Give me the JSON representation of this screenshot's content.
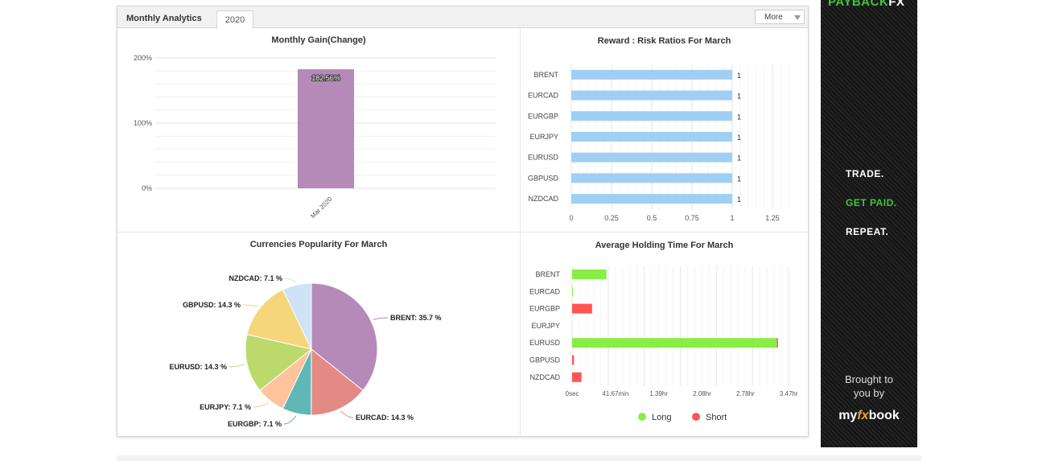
{
  "widget": {
    "title": "Monthly Analytics",
    "year_tab": "2020",
    "more_label": "More"
  },
  "charts": {
    "gain": {
      "title": "Monthly Gain(Change)"
    },
    "rr": {
      "title": "Reward : Risk Ratios For March"
    },
    "pop": {
      "title": "Currencies Popularity For March"
    },
    "hold": {
      "title": "Average Holding Time For March",
      "legend_long": "Long",
      "legend_short": "Short"
    }
  },
  "ad": {
    "brand_a": "PAYBACK",
    "brand_b": "FX",
    "line1": "TRADE.",
    "line2": "GET PAID.",
    "line3": "REPEAT.",
    "brought": "Brought to you by",
    "logo_a": "my",
    "logo_b": "fx",
    "logo_c": "book",
    "colors": {
      "green": "#3ec73e",
      "bg": "#1b1b1b"
    }
  },
  "chart_data": [
    {
      "type": "bar",
      "title": "Monthly Gain(Change)",
      "categories": [
        "Mar 2020"
      ],
      "values": [
        182.56
      ],
      "data_labels": [
        "182.56%"
      ],
      "ylim": [
        0,
        200
      ],
      "yticks": [
        0,
        100,
        200
      ],
      "ytick_labels": [
        "0%",
        "100%",
        "200%"
      ],
      "color": "#b589b8"
    },
    {
      "type": "bar",
      "orientation": "horizontal",
      "title": "Reward : Risk Ratios For March",
      "categories": [
        "BRENT",
        "EURCAD",
        "EURGBP",
        "EURJPY",
        "EURUSD",
        "GBPUSD",
        "NZDCAD"
      ],
      "values": [
        1,
        1,
        1,
        1,
        1,
        1,
        1
      ],
      "data_labels": [
        "1",
        "1",
        "1",
        "1",
        "1",
        "1",
        "1"
      ],
      "xlim": [
        0,
        1.35
      ],
      "xticks": [
        0,
        0.25,
        0.5,
        0.75,
        1,
        1.25
      ],
      "xtick_labels": [
        "0",
        "0.25",
        "0.5",
        "0.75",
        "1",
        "1.25"
      ],
      "color": "#a0cff5"
    },
    {
      "type": "pie",
      "title": "Currencies Popularity For March",
      "labels": [
        "BRENT",
        "EURCAD",
        "EURGBP",
        "EURJPY",
        "EURUSD",
        "GBPUSD",
        "NZDCAD"
      ],
      "values": [
        35.7,
        14.3,
        7.1,
        7.1,
        14.3,
        14.3,
        7.1
      ],
      "data_labels": [
        "BRENT: 35.7 %",
        "EURCAD: 14.3 %",
        "EURGBP: 7.1 %",
        "EURJPY: 7.1 %",
        "EURUSD: 14.3 %",
        "GBPUSD: 14.3 %",
        "NZDCAD: 7.1 %"
      ],
      "colors": [
        "#b589b8",
        "#e48a85",
        "#5fb8b5",
        "#ffc49b",
        "#bcd96b",
        "#f5d67a",
        "#cfe3f6"
      ]
    },
    {
      "type": "bar",
      "orientation": "horizontal",
      "title": "Average Holding Time For March",
      "categories": [
        "BRENT",
        "EURCAD",
        "EURGBP",
        "EURJPY",
        "EURUSD",
        "GBPUSD",
        "NZDCAD"
      ],
      "series": [
        {
          "name": "Long",
          "color": "#88ee44",
          "values_hr": [
            0.55,
            0.01,
            0,
            0,
            3.28,
            0,
            0
          ]
        },
        {
          "name": "Short",
          "color": "#ff5555",
          "values_hr": [
            0,
            0,
            0.32,
            0,
            0.02,
            0.03,
            0.15
          ]
        }
      ],
      "xlim_hr": [
        0,
        3.47
      ],
      "xticks_hr": [
        0,
        0.6945,
        1.389,
        2.0835,
        2.778,
        3.4725
      ],
      "xtick_labels": [
        "0sec",
        "41.67min",
        "1.39hr",
        "2.08hr",
        "2.78hr",
        "3.47hr"
      ]
    }
  ]
}
